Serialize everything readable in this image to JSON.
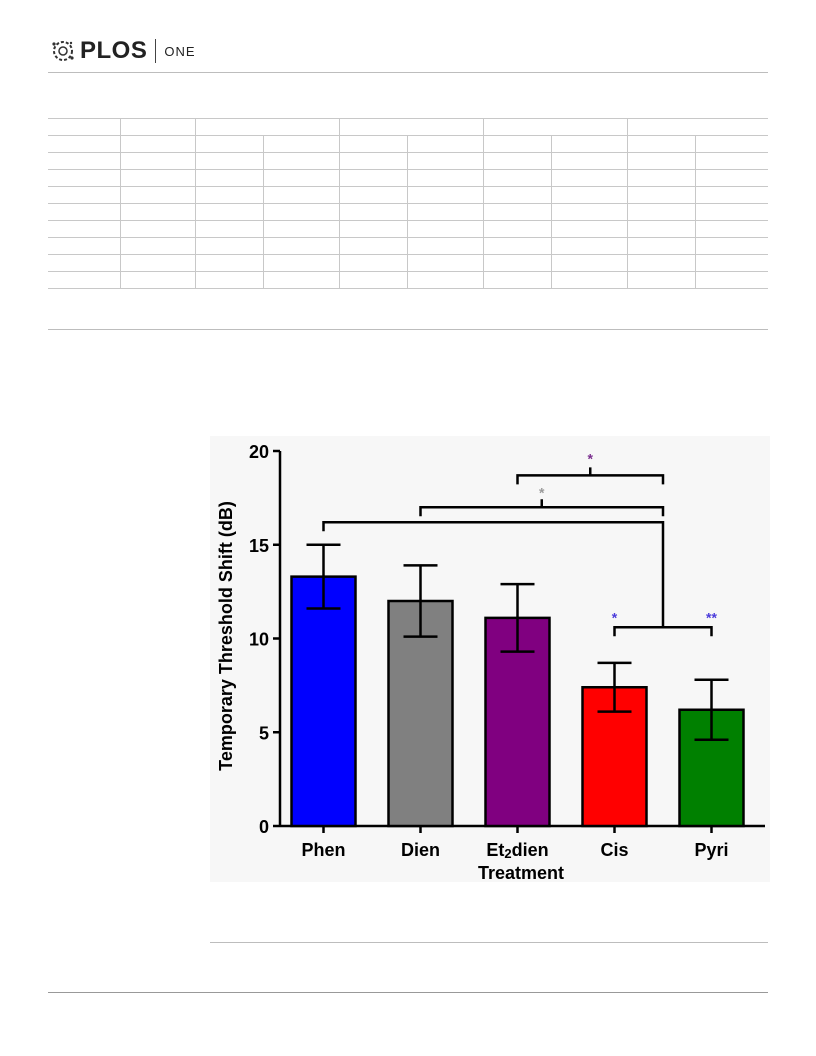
{
  "header": {
    "brand": "PLOS",
    "journal": "ONE"
  },
  "chart_data": {
    "type": "bar",
    "categories": [
      "Phen",
      "Dien",
      "Et2dien",
      "Cis",
      "Pyri"
    ],
    "category_labels": [
      {
        "main": "Phen",
        "sub": ""
      },
      {
        "main": "Dien",
        "sub": ""
      },
      {
        "main": "Et",
        "sub": "2",
        "tail": "dien"
      },
      {
        "main": "Cis",
        "sub": ""
      },
      {
        "main": "Pyri",
        "sub": ""
      }
    ],
    "values": [
      13.3,
      12.0,
      11.1,
      7.4,
      6.2
    ],
    "errors": [
      1.7,
      1.9,
      1.8,
      1.3,
      1.6
    ],
    "colors": [
      "#0000ff",
      "#808080",
      "#800080",
      "#ff0000",
      "#008000"
    ],
    "xlabel": "Treatment",
    "ylabel": "Temporary Threshold Shift (dB)",
    "ylim": [
      0,
      20
    ],
    "yticks": [
      0,
      5,
      10,
      15,
      20
    ],
    "significance": [
      {
        "label": "*",
        "color": "#4b3bdb",
        "from": "Cis",
        "to": "Pyri"
      },
      {
        "label": "**",
        "color": "#4b3bdb",
        "from": "Cis",
        "to": "Pyri"
      },
      {
        "label": "*",
        "color": "#9a9a9a",
        "from": "Dien",
        "to": "Pyri"
      },
      {
        "label": "*",
        "color": "#7a2e8e",
        "from": "Et2dien",
        "to": "Pyri"
      }
    ]
  }
}
